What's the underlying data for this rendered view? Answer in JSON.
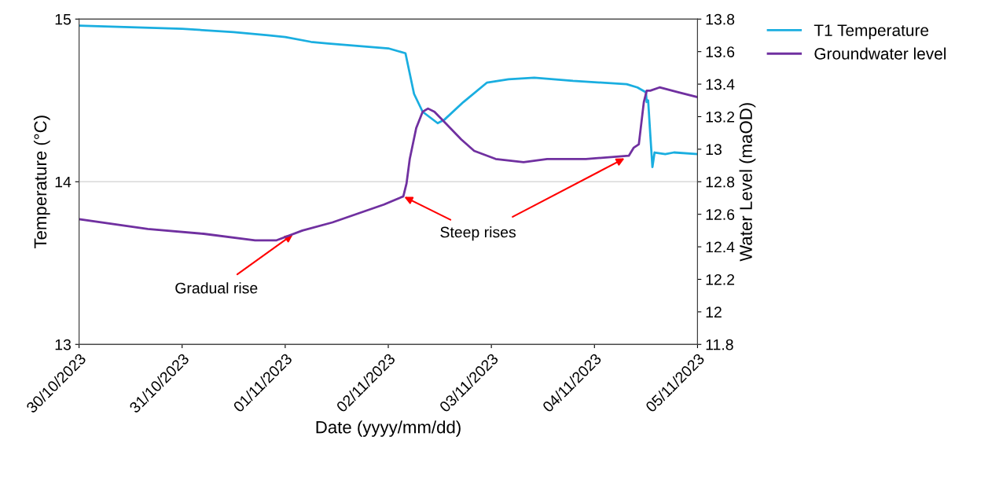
{
  "chart_data": {
    "type": "line",
    "xlabel": "Date (yyyy/mm/dd)",
    "ylabel": "Temperature (°C)",
    "y2label": "Water Level (maOD)",
    "xlim": [
      "2023-10-30",
      "2023-11-05"
    ],
    "xticks": [
      {
        "value": "2023-10-30",
        "label": "30/10/2023"
      },
      {
        "value": "2023-10-31",
        "label": "31/10/2023"
      },
      {
        "value": "2023-11-01",
        "label": "01/11/2023"
      },
      {
        "value": "2023-11-02",
        "label": "02/11/2023"
      },
      {
        "value": "2023-11-03",
        "label": "03/11/2023"
      },
      {
        "value": "2023-11-04",
        "label": "04/11/2023"
      },
      {
        "value": "2023-11-05",
        "label": "05/11/2023"
      }
    ],
    "ylim": [
      13,
      15
    ],
    "yticks": [
      13,
      14,
      15
    ],
    "y2lim": [
      11.8,
      13.8
    ],
    "y2ticks": [
      11.8,
      12,
      12.2,
      12.4,
      12.6,
      12.8,
      13,
      13.2,
      13.4,
      13.6,
      13.8
    ],
    "grid": "y",
    "legend": "top right",
    "marker": "none",
    "line_style": "solid",
    "series": [
      {
        "name": "T1 Temperature",
        "color": "#1aaee0",
        "x": [
          "2023-10-30T00:00",
          "2023-10-30T12:00",
          "2023-10-31T00:00",
          "2023-10-31T12:00",
          "2023-10-31T20:00",
          "2023-11-01T00:00",
          "2023-11-01T06:00",
          "2023-11-01T10:00",
          "2023-11-02T00:00",
          "2023-11-02T04:00",
          "2023-11-02T06:00",
          "2023-11-02T08:00",
          "2023-11-02T11:30",
          "2023-11-02T13:00",
          "2023-11-02T17:30",
          "2023-11-02T23:00",
          "2023-11-03T04:00",
          "2023-11-03T10:00",
          "2023-11-03T19:00",
          "2023-11-04T07:30",
          "2023-11-04T10:00",
          "2023-11-04T12:00",
          "2023-11-04T12:10",
          "2023-11-04T12:30",
          "2023-11-04T13:00",
          "2023-11-04T13:30",
          "2023-11-04T14:00",
          "2023-11-04T16:30",
          "2023-11-04T18:30",
          "2023-11-05T00:00"
        ],
        "values": [
          14.96,
          14.95,
          14.94,
          14.92,
          14.9,
          14.89,
          14.86,
          14.85,
          14.82,
          14.79,
          14.54,
          14.43,
          14.36,
          14.38,
          14.49,
          14.61,
          14.63,
          14.64,
          14.62,
          14.6,
          14.58,
          14.55,
          14.49,
          14.5,
          14.29,
          14.09,
          14.18,
          14.17,
          14.18,
          14.17
        ]
      },
      {
        "name": "Groundwater level",
        "color": "#7030a0",
        "axis": "y2",
        "x": [
          "2023-10-30T00:00",
          "2023-10-30T16:00",
          "2023-10-31T05:00",
          "2023-10-31T17:00",
          "2023-10-31T22:00",
          "2023-11-01T04:00",
          "2023-11-01T11:00",
          "2023-11-01T23:00",
          "2023-11-02T03:30",
          "2023-11-02T04:15",
          "2023-11-02T05:00",
          "2023-11-02T06:30",
          "2023-11-02T08:00",
          "2023-11-02T09:15",
          "2023-11-02T10:45",
          "2023-11-02T13:20",
          "2023-11-02T17:00",
          "2023-11-02T20:00",
          "2023-11-03T01:00",
          "2023-11-03T07:30",
          "2023-11-03T13:00",
          "2023-11-03T22:00",
          "2023-11-04T08:00",
          "2023-11-04T09:10",
          "2023-11-04T10:20",
          "2023-11-04T11:30",
          "2023-11-04T12:10",
          "2023-11-04T13:00",
          "2023-11-04T15:10",
          "2023-11-04T19:30",
          "2023-11-05T00:00"
        ],
        "values": [
          12.57,
          12.51,
          12.48,
          12.44,
          12.44,
          12.5,
          12.55,
          12.66,
          12.71,
          12.79,
          12.94,
          13.13,
          13.23,
          13.25,
          13.23,
          13.16,
          13.06,
          12.99,
          12.94,
          12.92,
          12.94,
          12.94,
          12.96,
          13.01,
          13.03,
          13.29,
          13.36,
          13.36,
          13.38,
          13.35,
          13.32
        ]
      }
    ],
    "annotations": [
      {
        "text": "Gradual rise",
        "x": "2023-11-01T02:00",
        "y": 13.68
      },
      {
        "text": "Steep rises",
        "x": "2023-11-02T03:30",
        "y": 13.91
      }
    ]
  }
}
